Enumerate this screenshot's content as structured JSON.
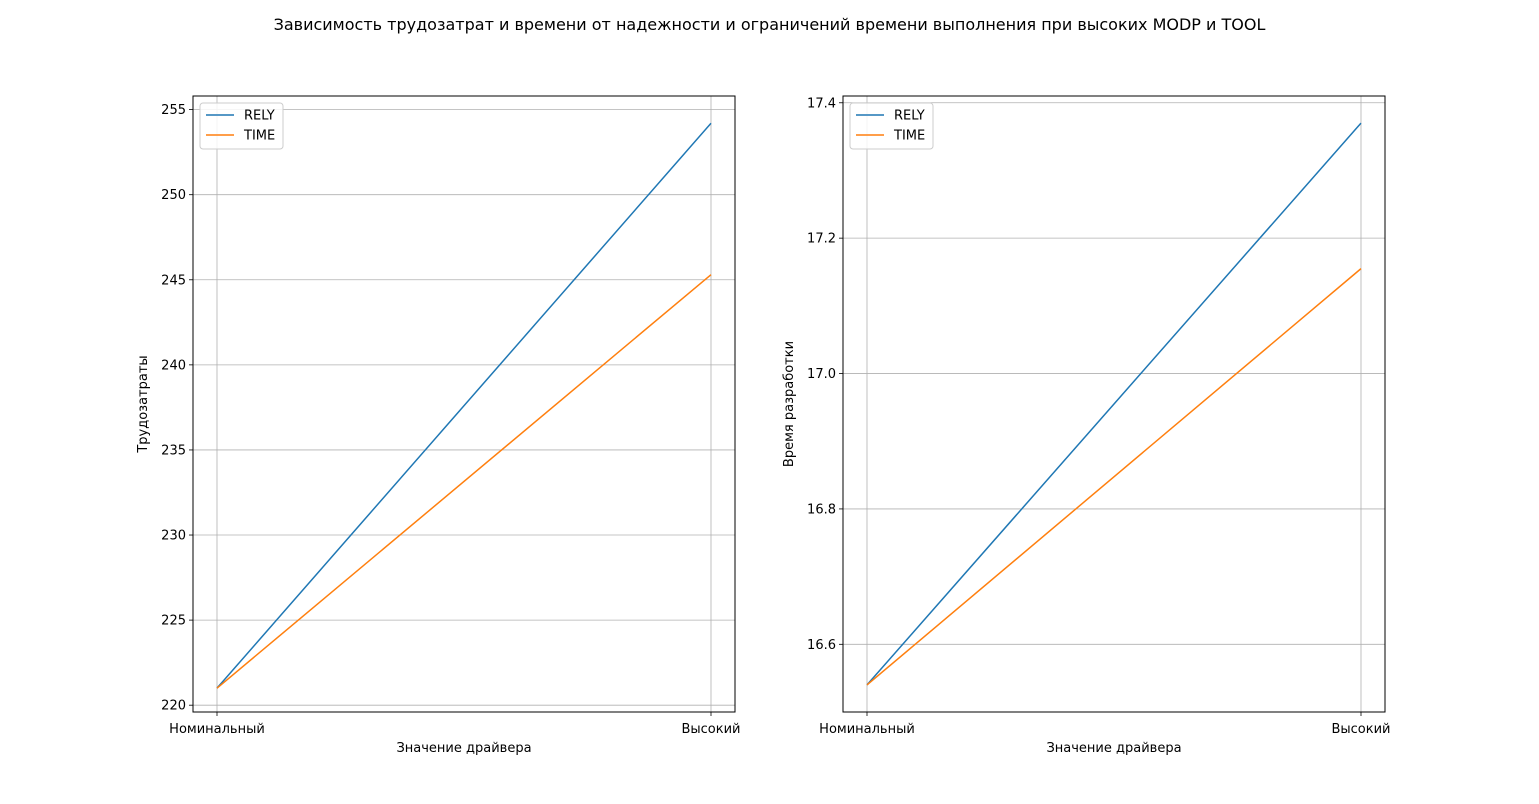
{
  "figure": {
    "title": "Зависимость трудозатрат и времени от надежности и ограничений времени выполнения при высоких MODP и TOOL"
  },
  "colors": {
    "RELY": "#1f77b4",
    "TIME": "#ff7f0e",
    "grid": "#b0b0b0",
    "axes": "#000000"
  },
  "chart_data": [
    {
      "type": "line",
      "title": "",
      "xlabel": "Значение драйвера",
      "ylabel": "Трудозатраты",
      "categories": [
        "Номинальный",
        "Высокий"
      ],
      "series": [
        {
          "name": "RELY",
          "values": [
            221.0,
            254.2
          ]
        },
        {
          "name": "TIME",
          "values": [
            221.0,
            245.3
          ]
        }
      ],
      "ylim": [
        219.6,
        255.8
      ],
      "yticks": [
        220,
        225,
        230,
        235,
        240,
        245,
        250,
        255
      ],
      "ytick_labels": [
        "220",
        "225",
        "230",
        "235",
        "240",
        "245",
        "250",
        "255"
      ],
      "grid": true,
      "legend": "upper left"
    },
    {
      "type": "line",
      "title": "",
      "xlabel": "Значение драйвера",
      "ylabel": "Время разработки",
      "categories": [
        "Номинальный",
        "Высокий"
      ],
      "series": [
        {
          "name": "RELY",
          "values": [
            16.54,
            17.37
          ]
        },
        {
          "name": "TIME",
          "values": [
            16.54,
            17.155
          ]
        }
      ],
      "ylim": [
        16.5,
        17.41
      ],
      "yticks": [
        16.6,
        16.8,
        17.0,
        17.2,
        17.4
      ],
      "ytick_labels": [
        "16.6",
        "16.8",
        "17.0",
        "17.2",
        "17.4"
      ],
      "grid": true,
      "legend": "upper left"
    }
  ]
}
